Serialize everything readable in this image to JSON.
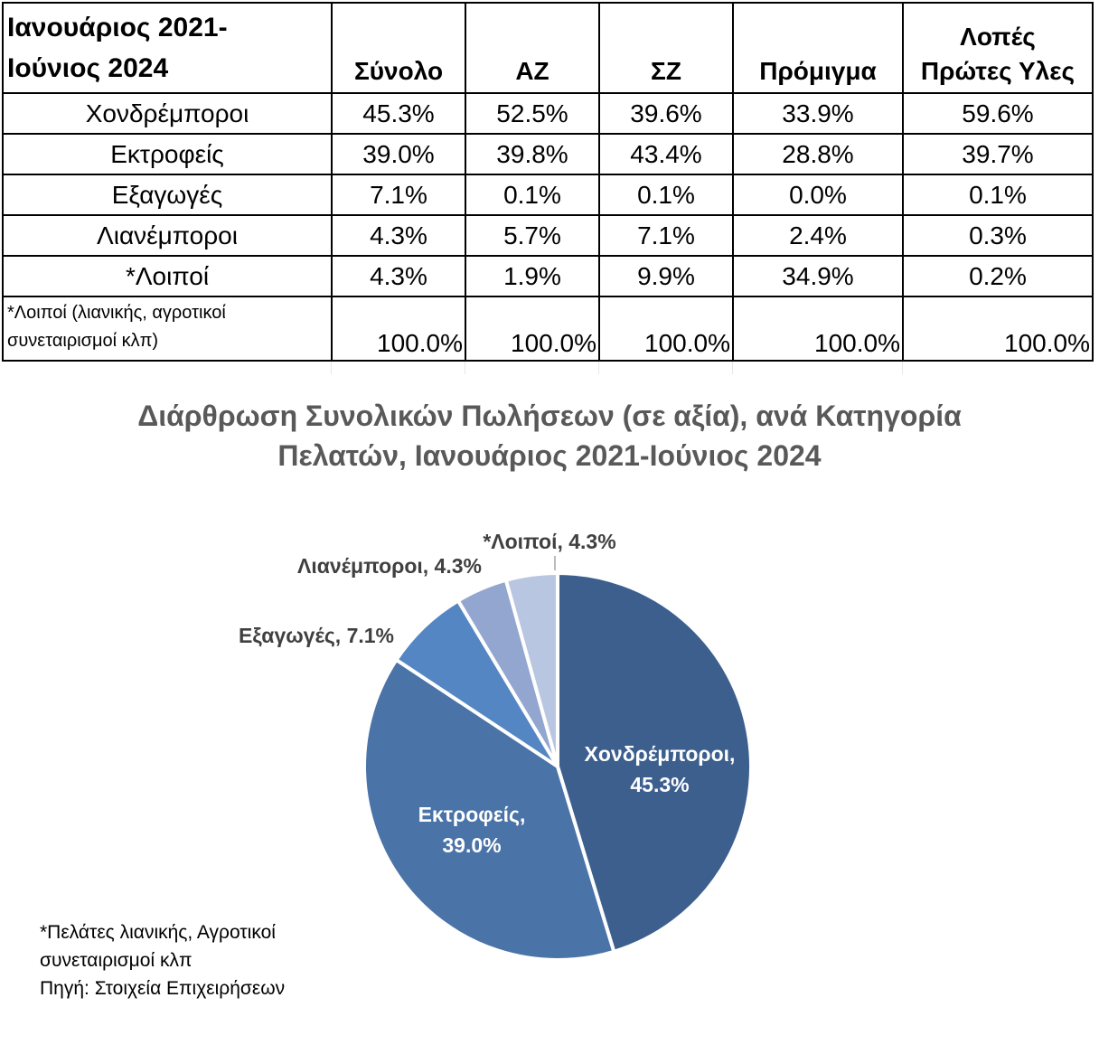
{
  "table": {
    "corner_line1": "Ιανουάριος 2021-",
    "corner_line2": "Ιούνιος 2024",
    "columns": [
      "Σύνολο",
      "ΑΖ",
      "ΣΖ",
      "Πρόμιγμα"
    ],
    "last_column_line1": "Λοπές",
    "last_column_line2": "Πρώτες Υλες",
    "rows": [
      {
        "label": "Χονδρέμποροι",
        "values": [
          "45.3%",
          "52.5%",
          "39.6%",
          "33.9%",
          "59.6%"
        ]
      },
      {
        "label": "Εκτροφείς",
        "values": [
          "39.0%",
          "39.8%",
          "43.4%",
          "28.8%",
          "39.7%"
        ]
      },
      {
        "label": "Εξαγωγές",
        "values": [
          "7.1%",
          "0.1%",
          "0.1%",
          "0.0%",
          "0.1%"
        ]
      },
      {
        "label": "Λιανέμποροι",
        "values": [
          "4.3%",
          "5.7%",
          "7.1%",
          "2.4%",
          "0.3%"
        ]
      },
      {
        "label": "*Λοιποί",
        "values": [
          "4.3%",
          "1.9%",
          "9.9%",
          "34.9%",
          "0.2%"
        ]
      }
    ],
    "total_note_line1": "*Λοιποί (λιανικής, αγροτικοί",
    "total_note_line2": "συνεταιρισμοί κλπ)",
    "totals": [
      "100.0%",
      "100.0%",
      "100.0%",
      "100.0%",
      "100.0%"
    ]
  },
  "chart_data": {
    "type": "pie",
    "title_line1": "Διάρθρωση Συνολικών Πωλήσεων (σε αξία), ανά Κατηγορία",
    "title_line2": "Πελατών, Ιανουάριος 2021-Ιούνιος 2024",
    "categories": [
      "Χονδρέμποροι",
      "Εκτροφείς",
      "Εξαγωγές",
      "Λιανέμποροι",
      "*Λοιποί"
    ],
    "values": [
      45.3,
      39.0,
      7.1,
      4.3,
      4.3
    ],
    "labels": [
      "45.3%",
      "39.0%",
      "7.1%",
      "4.3%",
      "4.3%"
    ],
    "colors": [
      "#3c5f8e",
      "#4a73a8",
      "#5586c4",
      "#93a6cf",
      "#b9c6e1"
    ],
    "label_colors": [
      "#ffffff",
      "#ffffff",
      "#404040",
      "#404040",
      "#404040"
    ]
  },
  "footnotes": {
    "line1": "*Πελάτες λιανικής, Αγροτικοί",
    "line2": "συνεταιρισμοί κλπ",
    "line3": "Πηγή: Στοιχεία Επιχειρήσεων"
  }
}
